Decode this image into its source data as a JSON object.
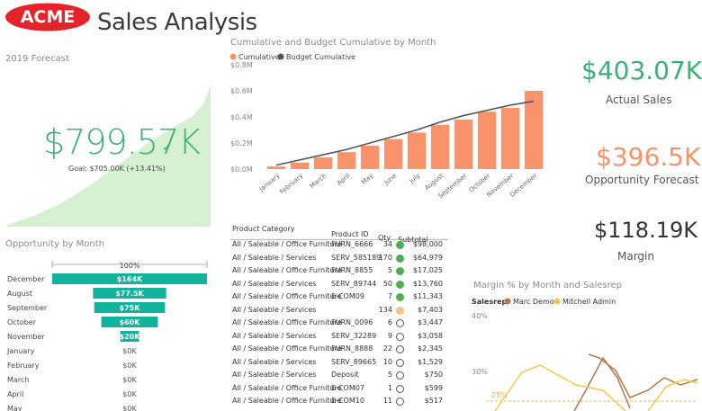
{
  "header": {
    "brand": "ACME",
    "title": "Sales Analysis"
  },
  "colors": {
    "brand_red": "#e4232b",
    "forecast_green": "#3db07a",
    "area_green": "#d7f0d3",
    "bar_orange": "#f9936b",
    "budget_line": "#555555",
    "funnel_teal": "#10b39b",
    "kpi_green": "#3db07a",
    "kpi_orange": "#f5946c",
    "kpi_dark": "#333333",
    "marc_brown": "#b07a4a",
    "mitchell_yellow": "#f2c94c"
  },
  "forecast": {
    "title": "2019 Forecast",
    "value": "$799.57K",
    "goal": "Goal: $705.00K (+13.41%)",
    "status_icon": "checkmark-icon"
  },
  "cumulative": {
    "title": "Cumulative and Budget Cumulative by Month",
    "legend": [
      "Cumulative",
      "Budget Cumulative"
    ]
  },
  "chart_data": {
    "type": "bar",
    "title": "Cumulative and Budget Cumulative by Month",
    "categories": [
      "January",
      "February",
      "March",
      "April",
      "May",
      "June",
      "July",
      "August",
      "September",
      "October",
      "November",
      "December"
    ],
    "y_ticks": [
      "$0.0M",
      "$0.2M",
      "$0.4M",
      "$0.6M",
      "$0.8M"
    ],
    "ylim": [
      0,
      0.8
    ],
    "series": [
      {
        "name": "Cumulative",
        "type": "bar",
        "values": [
          0.02,
          0.05,
          0.09,
          0.13,
          0.18,
          0.23,
          0.28,
          0.34,
          0.38,
          0.44,
          0.47,
          0.6
        ]
      },
      {
        "name": "Budget Cumulative",
        "type": "line",
        "values": [
          0.03,
          0.07,
          0.11,
          0.15,
          0.2,
          0.25,
          0.3,
          0.36,
          0.41,
          0.45,
          0.49,
          0.52
        ]
      }
    ]
  },
  "kpis": [
    {
      "value": "$403.07K",
      "label": "Actual Sales"
    },
    {
      "value": "$396.5K",
      "label": "Opportunity Forecast"
    },
    {
      "value": "$118.19K",
      "label": "Margin"
    }
  ],
  "funnel": {
    "title": "Opportunity by Month",
    "top_label": "100%",
    "rows": [
      {
        "month": "December",
        "value": "$164K",
        "amount": 164
      },
      {
        "month": "August",
        "value": "$77.5K",
        "amount": 77.5
      },
      {
        "month": "September",
        "value": "$75K",
        "amount": 75
      },
      {
        "month": "October",
        "value": "$60K",
        "amount": 60
      },
      {
        "month": "November",
        "value": "$20K",
        "amount": 20
      },
      {
        "month": "January",
        "value": "$0K",
        "amount": 0
      },
      {
        "month": "February",
        "value": "$0K",
        "amount": 0
      },
      {
        "month": "March",
        "value": "$0K",
        "amount": 0
      },
      {
        "month": "April",
        "value": "$0K",
        "amount": 0
      },
      {
        "month": "May",
        "value": "$0K",
        "amount": 0
      }
    ]
  },
  "table": {
    "headers": [
      "Product Category",
      "Product ID",
      "Qty",
      "Subtotal"
    ],
    "rows": [
      {
        "cat": "All / Saleable / Office Furniture",
        "pid": "FURN_6666",
        "qty": "34",
        "ind": "green",
        "sub": "$98,000"
      },
      {
        "cat": "All / Saleable / Services",
        "pid": "SERV_585189",
        "qty": "170",
        "ind": "green",
        "sub": "$64,979"
      },
      {
        "cat": "All / Saleable / Office Furniture",
        "pid": "FURN_8855",
        "qty": "5",
        "ind": "green",
        "sub": "$17,025"
      },
      {
        "cat": "All / Saleable / Services",
        "pid": "SERV_89744",
        "qty": "50",
        "ind": "green",
        "sub": "$13,760"
      },
      {
        "cat": "All / Saleable / Office Furniture",
        "pid": "E-COM09",
        "qty": "7",
        "ind": "green",
        "sub": "$11,343"
      },
      {
        "cat": "All / Saleable / Services",
        "pid": "",
        "qty": "134",
        "ind": "orange",
        "sub": "$7,403"
      },
      {
        "cat": "All / Saleable / Office Furniture",
        "pid": "FURN_0096",
        "qty": "6",
        "ind": "empty",
        "sub": "$3,447"
      },
      {
        "cat": "All / Saleable / Services",
        "pid": "SERV_32289",
        "qty": "9",
        "ind": "empty",
        "sub": "$3,058"
      },
      {
        "cat": "All / Saleable / Office Furniture",
        "pid": "FURN_8888",
        "qty": "22",
        "ind": "empty",
        "sub": "$2,345"
      },
      {
        "cat": "All / Saleable / Services",
        "pid": "SERV_89665",
        "qty": "10",
        "ind": "empty",
        "sub": "$1,529"
      },
      {
        "cat": "All / Saleable / Services",
        "pid": "Deposit",
        "qty": "5",
        "ind": "empty",
        "sub": "$750"
      },
      {
        "cat": "All / Saleable / Office Furniture",
        "pid": "E-COM07",
        "qty": "1",
        "ind": "empty",
        "sub": "$599"
      },
      {
        "cat": "All / Saleable / Office Furniture",
        "pid": "E-COM10",
        "qty": "11",
        "ind": "empty",
        "sub": "$517"
      }
    ]
  },
  "margin": {
    "title": "Margin % by Month and Salesrep",
    "legend_title": "Salesrep",
    "legend": [
      "Marc Demo",
      "Mitchell Admin"
    ],
    "y_ticks": [
      "40%",
      "30%"
    ],
    "annotation": "25%"
  }
}
